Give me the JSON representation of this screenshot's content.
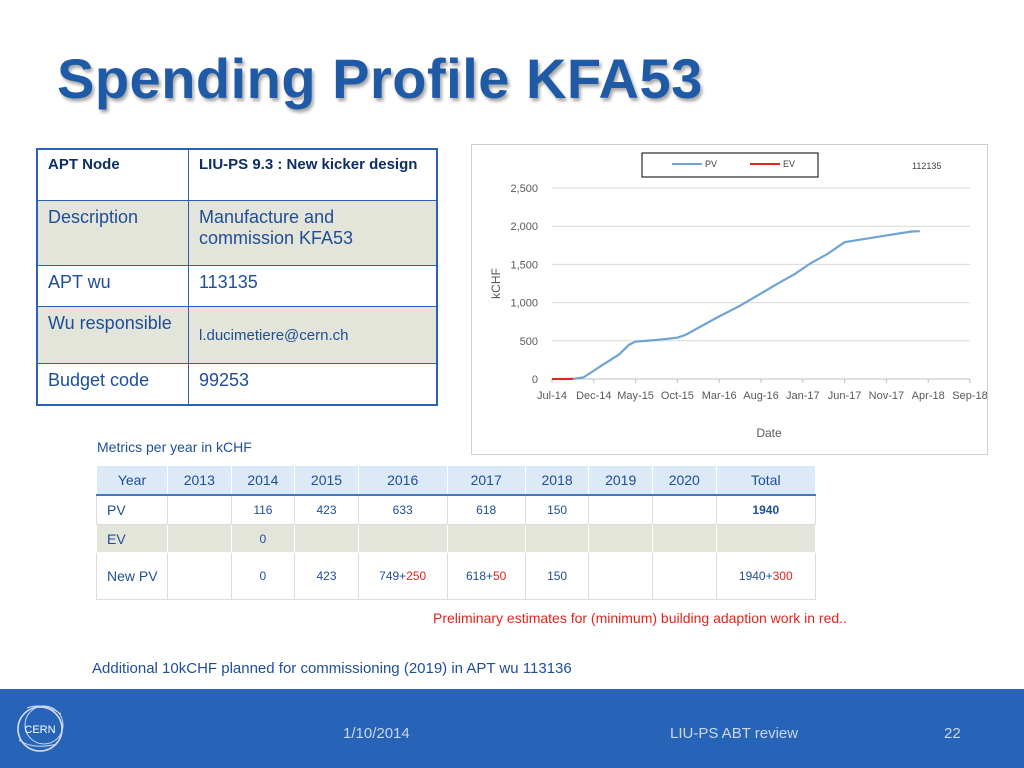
{
  "title": "Spending Profile KFA53",
  "info": {
    "header": [
      "APT Node",
      "LIU-PS 9.3 : New kicker design"
    ],
    "rows": [
      [
        "Description",
        "Manufacture and commission KFA53"
      ],
      [
        "APT wu",
        "113135"
      ],
      [
        "Wu responsible",
        "l.ducimetiere@cern.ch"
      ],
      [
        "Budget code",
        "99253"
      ]
    ]
  },
  "chart_data": {
    "type": "line",
    "annotation": "112135",
    "xlabel": "Date",
    "ylabel": "kCHF",
    "ylim": [
      0,
      2500
    ],
    "yticks": [
      "0",
      "500",
      "1,000",
      "1,500",
      "2,000",
      "2,500"
    ],
    "xticks": [
      "Jul-14",
      "Dec-14",
      "May-15",
      "Oct-15",
      "Mar-16",
      "Aug-16",
      "Jan-17",
      "Jun-17",
      "Nov-17",
      "Apr-18",
      "Sep-18"
    ],
    "legend": [
      "PV",
      "EV"
    ],
    "legend_position": "top",
    "grid": true,
    "series": [
      {
        "name": "PV",
        "color": "#6fa3d6",
        "points": [
          [
            0,
            0
          ],
          [
            0.35,
            0
          ],
          [
            0.55,
            5
          ],
          [
            0.75,
            20
          ],
          [
            1.2,
            180
          ],
          [
            1.6,
            320
          ],
          [
            1.85,
            450
          ],
          [
            2.0,
            490
          ],
          [
            2.5,
            510
          ],
          [
            3.0,
            540
          ],
          [
            3.2,
            580
          ],
          [
            3.6,
            700
          ],
          [
            4.0,
            820
          ],
          [
            4.5,
            960
          ],
          [
            5.0,
            1120
          ],
          [
            5.5,
            1280
          ],
          [
            5.8,
            1370
          ],
          [
            6.2,
            1520
          ],
          [
            6.6,
            1640
          ],
          [
            7.0,
            1790
          ],
          [
            8.0,
            1880
          ],
          [
            8.6,
            1930
          ],
          [
            8.8,
            1935
          ]
        ]
      },
      {
        "name": "EV",
        "color": "#e1251b",
        "points": [
          [
            0,
            0
          ],
          [
            0.5,
            0
          ]
        ]
      }
    ]
  },
  "metrics": {
    "caption": "Metrics per year in kCHF",
    "headers": [
      "Year",
      "2013",
      "2014",
      "2015",
      "2016",
      "2017",
      "2018",
      "2019",
      "2020",
      "Total"
    ],
    "pv": [
      "PV",
      "",
      "116",
      "423",
      "633",
      "618",
      "150",
      "",
      "",
      "1940"
    ],
    "ev": [
      "EV",
      "",
      "0",
      "",
      "",
      "",
      "",
      "",
      "",
      ""
    ],
    "newpv": {
      "label": "New PV",
      "y2013": "",
      "y2014": "0",
      "y2015": "423",
      "y2016_base": "749+",
      "y2016_add": "250",
      "y2017_base": "618+",
      "y2017_add": "50",
      "y2018": "150",
      "y2019": "",
      "y2020": "",
      "total_base": "1940+",
      "total_add": "300"
    }
  },
  "note_red": "Preliminary estimates for (minimum) building adaption work in red..",
  "additional": "Additional 10kCHF planned for commissioning (2019)  in  APT wu 113136",
  "footer": {
    "date": "1/10/2014",
    "event": "LIU-PS ABT review",
    "page": "22",
    "logo_text": "CERN"
  },
  "colors": {
    "title": "#1f5aa6",
    "footer": "#2764b8",
    "pv": "#6fa3d6",
    "ev": "#e1251b"
  }
}
